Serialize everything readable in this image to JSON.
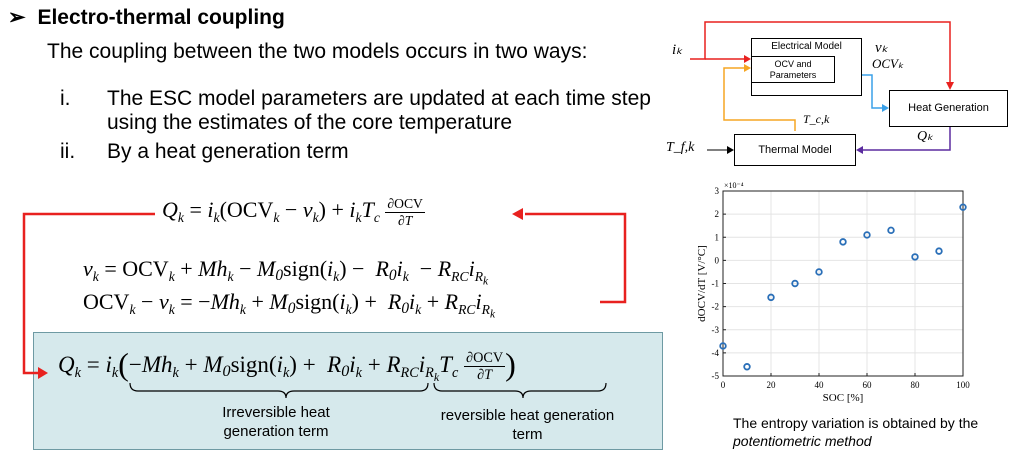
{
  "heading": {
    "bullet": "➢",
    "title": "Electro-thermal coupling"
  },
  "intro": "The coupling between the two models occurs in two ways:",
  "items": [
    {
      "marker": "i.",
      "text": "The ESC model parameters are updated at each time step using the estimates of the core temperature"
    },
    {
      "marker": "ii.",
      "text": "By a heat generation term"
    }
  ],
  "equations": {
    "q": "Qₖ = iₖ(OCVₖ − vₖ) + iₖT_c ∂OCV/∂T",
    "v": "vₖ = OCVₖ + Mhₖ − M₀sign(iₖ) − R₀iₖ − R_RC i_Rₖ",
    "ocv_minus_v": "OCVₖ − vₖ = −Mhₖ + M₀sign(iₖ) + R₀iₖ + R_RC i_Rₖ",
    "final": "Qₖ = iₖ(−Mhₖ + M₀sign(iₖ) + R₀iₖ + R_RC i_Rₖ T_c ∂OCV/∂T)"
  },
  "brace_labels": {
    "irreversible": [
      "Irreversible heat",
      "generation term"
    ],
    "reversible": [
      "reversible heat generation",
      "term"
    ]
  },
  "block_diagram": {
    "electrical_model": "Electrical Model",
    "ocv_params": [
      "OCV and",
      "Parameters"
    ],
    "heat_generation": "Heat Generation",
    "thermal_model": "Thermal Model",
    "signals": {
      "input_current": "iₖ",
      "voltage": "vₖ",
      "ocv": "OCVₖ",
      "core_temp": "T_c,k",
      "heat": "Qₖ",
      "surface_temp": "T_f,k"
    }
  },
  "chart_data": {
    "type": "scatter",
    "x": [
      0,
      10,
      20,
      30,
      40,
      50,
      60,
      70,
      80,
      90,
      100
    ],
    "y": [
      -3.7,
      -4.6,
      -1.6,
      -1.0,
      -0.5,
      0.8,
      1.1,
      1.3,
      0.15,
      0.4,
      2.3
    ],
    "xlabel": "SOC [%]",
    "ylabel": "dOCV/dT [V/°C]",
    "y_scale_label": "×10⁻⁴",
    "xlim": [
      0,
      100
    ],
    "ylim": [
      -5,
      3
    ],
    "xticks": [
      "0",
      "20",
      "40",
      "60",
      "80",
      "100"
    ],
    "yticks": [
      "3",
      "2",
      "1",
      "0",
      "-1",
      "-2",
      "-3",
      "-4",
      "-5"
    ],
    "grid": true,
    "marker_color": "#2a6fb8"
  },
  "caption": {
    "prefix": "The entropy variation is obtained by the ",
    "emphasis": "potentiometric method"
  },
  "colors": {
    "arrow_red": "#e8211f",
    "arrow_yellow": "#f5a623",
    "arrow_blue": "#3aa0e8",
    "arrow_purple": "#5b2c9f",
    "box_fill": "#d6e9ec"
  }
}
